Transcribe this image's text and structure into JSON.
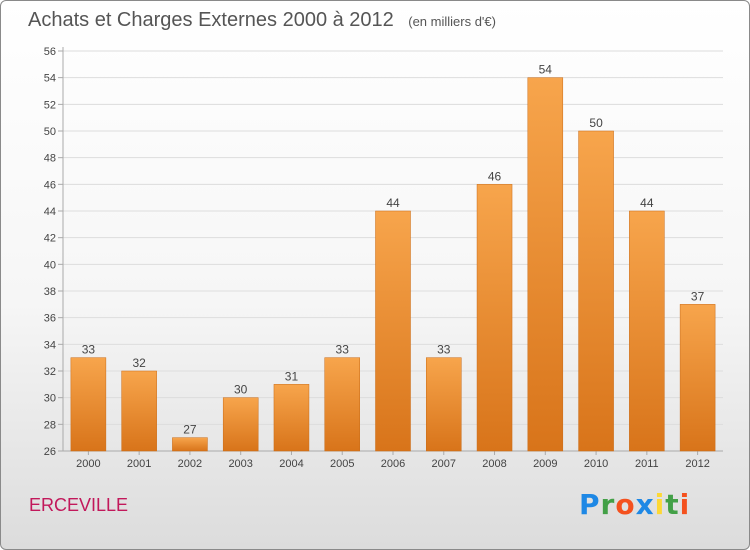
{
  "header": {
    "title": "Achats et Charges Externes 2000 à 2012",
    "subtitle": "(en milliers d'€)"
  },
  "footer": {
    "city": "ERCEVILLE",
    "logo_text": "Proxiti"
  },
  "colors": {
    "bar_light": "#f7a54c",
    "bar_dark": "#d8741a",
    "axis": "#aaaaaa",
    "grid": "#dddddd",
    "text": "#444444",
    "city": "#c2185b",
    "logo_letters": [
      "#1e88e5",
      "#43a047",
      "#f4511e",
      "#1e88e5",
      "#fdd835",
      "#43a047",
      "#f4511e"
    ]
  },
  "chart_data": {
    "type": "bar",
    "title": "Achats et Charges Externes 2000 à 2012",
    "subtitle": "(en milliers d'€)",
    "categories": [
      "2000",
      "2001",
      "2002",
      "2003",
      "2004",
      "2005",
      "2006",
      "2007",
      "2008",
      "2009",
      "2010",
      "2011",
      "2012"
    ],
    "values": [
      33,
      32,
      27,
      30,
      31,
      33,
      44,
      33,
      46,
      54,
      50,
      44,
      37
    ],
    "xlabel": "",
    "ylabel": "",
    "ylim": [
      26,
      56
    ],
    "yticks": [
      26,
      28,
      30,
      32,
      34,
      36,
      38,
      40,
      42,
      44,
      46,
      48,
      50,
      52,
      54,
      56
    ],
    "grid": true,
    "legend": "none"
  }
}
